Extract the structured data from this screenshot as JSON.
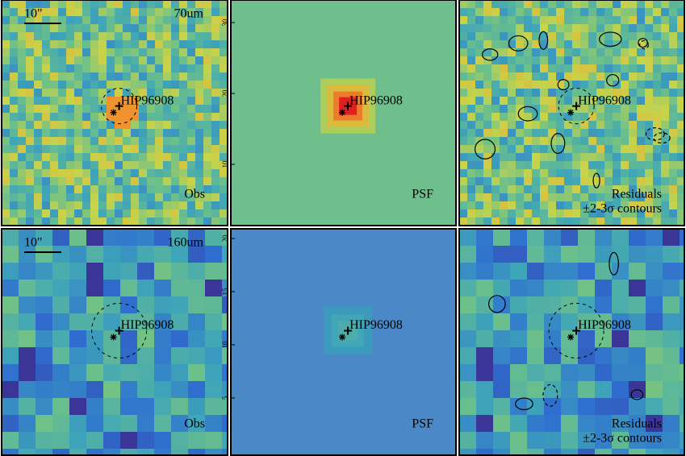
{
  "panels": [
    {
      "scale_label": "10\"",
      "band_label": "70um",
      "target": "HIP96908",
      "panel_label": "Obs"
    },
    {
      "target": "HIP96908",
      "panel_label": "PSF",
      "ticks": [
        "30",
        "20",
        "10"
      ]
    },
    {
      "target": "HIP96908",
      "panel_label": "Residuals",
      "contour_label": "±2-3σ contours"
    },
    {
      "scale_label": "10\"",
      "band_label": "160um",
      "target": "HIP96908",
      "panel_label": "Obs"
    },
    {
      "target": "HIP96908",
      "panel_label": "PSF",
      "ticks": [
        "20",
        "15",
        "10",
        "5"
      ]
    },
    {
      "target": "HIP96908",
      "panel_label": "Residuals",
      "contour_label": "±2-3σ contours"
    }
  ]
}
